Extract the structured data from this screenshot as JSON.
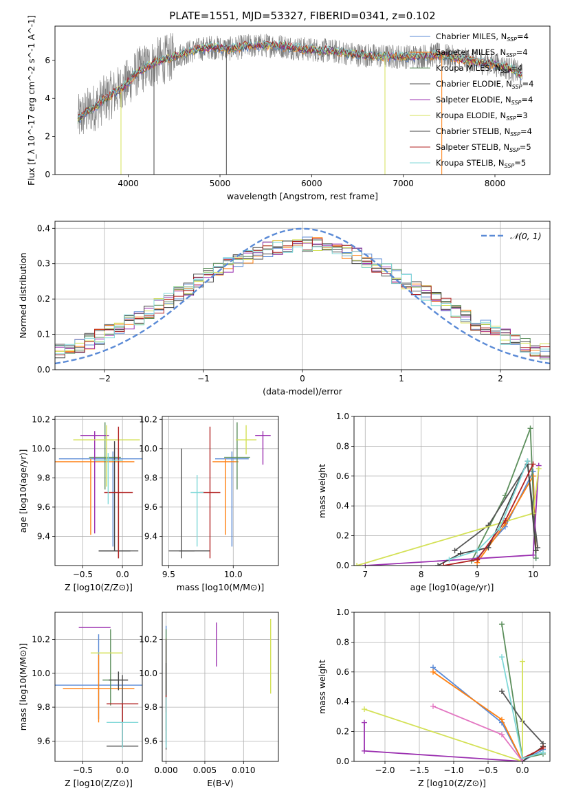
{
  "title": "PLATE=1551, MJD=53327, FIBERID=0341, z=0.102",
  "series": [
    {
      "name": "Chabrier MILES",
      "nssp": "4",
      "color": "#5a8ad6"
    },
    {
      "name": "Salpeter MILES",
      "nssp": "4",
      "color": "#ff7f0e"
    },
    {
      "name": "Kroupa MILES",
      "nssp": "4",
      "color": "#5c8f5c"
    },
    {
      "name": "Chabrier ELODIE",
      "nssp": "4",
      "color": "#555555"
    },
    {
      "name": "Salpeter ELODIE",
      "nssp": "4",
      "color": "#9b30b0"
    },
    {
      "name": "Kroupa ELODIE",
      "nssp": "3",
      "color": "#d4e157"
    },
    {
      "name": "Chabrier STELIB",
      "nssp": "4",
      "color": "#444444"
    },
    {
      "name": "Salpeter STELIB",
      "nssp": "5",
      "color": "#b22222"
    },
    {
      "name": "Kroupa STELIB",
      "nssp": "5",
      "color": "#7fd8d8"
    }
  ],
  "chart_data": [
    {
      "id": "spectrum",
      "type": "line",
      "xlabel": "wavelength [Angstrom, rest frame]",
      "ylabel": "Flux [f_λ 10^-17 erg cm^-2 s^-1 A^-1]",
      "xlim": [
        3200,
        8600
      ],
      "ylim": [
        0,
        7.8
      ],
      "xticks": [
        4000,
        5000,
        6000,
        7000,
        8000
      ],
      "yticks": [
        0,
        2,
        4,
        6
      ],
      "grid": false,
      "legend": "right",
      "data_color": "#808080",
      "continuum": {
        "x": [
          3450,
          3550,
          3650,
          3750,
          3850,
          3950,
          4100,
          4300,
          4500,
          4700,
          4900,
          5100,
          5300,
          5600,
          5900,
          6200,
          6500,
          6800,
          7100,
          7400,
          7700,
          8000,
          8200,
          8300
        ],
        "y": [
          2.9,
          3.3,
          3.6,
          4.0,
          4.3,
          4.6,
          5.4,
          5.9,
          6.2,
          6.5,
          6.7,
          6.6,
          6.75,
          6.8,
          6.6,
          6.5,
          6.3,
          6.2,
          6.2,
          6.3,
          6.0,
          5.8,
          5.5,
          5.2
        ]
      },
      "spikes_down": [
        {
          "x": 3920,
          "y": 0,
          "series": "Kroupa ELODIE"
        },
        {
          "x": 4280,
          "y": 0,
          "series": "Chabrier STELIB"
        },
        {
          "x": 5070,
          "y": 0,
          "series": "Chabrier ELODIE"
        },
        {
          "x": 6800,
          "y": 0,
          "series": "Kroupa ELODIE"
        },
        {
          "x": 7420,
          "y": 0,
          "series": "Salpeter MILES"
        }
      ]
    },
    {
      "id": "residual-histogram",
      "type": "line",
      "xlabel": "(data-model)/error",
      "ylabel": "Normed distribution",
      "xlim": [
        -2.5,
        2.5
      ],
      "ylim": [
        0,
        0.42
      ],
      "xticks": [
        -2,
        -1,
        0,
        1,
        2
      ],
      "yticks": [
        0,
        0.1,
        0.2,
        0.3,
        0.4
      ],
      "grid": true,
      "bin_width": 0.1,
      "gaussian_label": "𝒩(0, 1)",
      "gaussian_color": "#5a8ad6",
      "legend": "top-right"
    },
    {
      "id": "age-vs-z",
      "type": "scatter",
      "xlabel": "Z [log10(Z/Z⊙)]",
      "ylabel": "age [log10(age/yr)]",
      "xlim": [
        -0.85,
        0.25
      ],
      "ylim": [
        9.2,
        10.22
      ],
      "xticks": [
        -0.5,
        0.0
      ],
      "yticks": [
        9.4,
        9.6,
        9.8,
        10.0,
        10.2
      ],
      "grid": true,
      "points": [
        {
          "x": -0.12,
          "y": 9.93,
          "xerr": 0.68,
          "yerr": [
            0.6,
            0.05
          ],
          "series": "Chabrier MILES"
        },
        {
          "x": -0.4,
          "y": 9.91,
          "xerr": 0.55,
          "yerr": [
            0.5,
            0.02
          ],
          "series": "Salpeter MILES"
        },
        {
          "x": -0.22,
          "y": 9.94,
          "xerr": 0.2,
          "yerr": [
            0.22,
            0.24
          ],
          "series": "Kroupa MILES"
        },
        {
          "x": -0.05,
          "y": 9.3,
          "xerr": 0.25,
          "yerr": [
            0.05,
            0.7
          ],
          "series": "Chabrier ELODIE"
        },
        {
          "x": -0.35,
          "y": 10.09,
          "xerr": 0.18,
          "yerr": [
            0.67,
            0.03
          ],
          "series": "Salpeter ELODIE"
        },
        {
          "x": -0.2,
          "y": 10.06,
          "xerr": 0.42,
          "yerr": [
            0.32,
            0.1
          ],
          "series": "Kroupa ELODIE"
        },
        {
          "x": -0.1,
          "y": 9.3,
          "xerr": 0.2,
          "yerr": [
            0.0,
            0.75
          ],
          "series": "Chabrier STELIB"
        },
        {
          "x": -0.05,
          "y": 9.7,
          "xerr": 0.18,
          "yerr": [
            0.45,
            0.45
          ],
          "series": "Salpeter STELIB"
        },
        {
          "x": -0.18,
          "y": 9.92,
          "xerr": 0.18,
          "yerr": [
            0.3,
            0.05
          ],
          "series": "Kroupa STELIB"
        }
      ]
    },
    {
      "id": "age-vs-mass",
      "type": "scatter",
      "xlabel": "mass [log10(M/M⊙)]",
      "ylabel": "",
      "xlim": [
        9.45,
        10.35
      ],
      "ylim": [
        9.2,
        10.22
      ],
      "xticks": [
        9.5,
        10.0
      ],
      "yticks": [
        9.4,
        9.6,
        9.8,
        10.0,
        10.2
      ],
      "grid": true,
      "points": [
        {
          "x": 9.99,
          "y": 9.93,
          "xerr": 0.13,
          "yerr": [
            0.6,
            0.05
          ],
          "series": "Chabrier MILES"
        },
        {
          "x": 9.94,
          "y": 9.91,
          "xerr": 0.1,
          "yerr": [
            0.5,
            0.02
          ],
          "series": "Salpeter MILES"
        },
        {
          "x": 10.03,
          "y": 9.94,
          "xerr": 0.1,
          "yerr": [
            0.22,
            0.24
          ],
          "series": "Kroupa MILES"
        },
        {
          "x": 9.6,
          "y": 9.3,
          "xerr": 0.1,
          "yerr": [
            0.05,
            0.7
          ],
          "series": "Chabrier ELODIE"
        },
        {
          "x": 10.23,
          "y": 10.09,
          "xerr": 0.06,
          "yerr": [
            0.2,
            0.03
          ],
          "series": "Salpeter ELODIE"
        },
        {
          "x": 10.1,
          "y": 10.06,
          "xerr": 0.08,
          "yerr": [
            0.1,
            0.1
          ],
          "series": "Kroupa ELODIE"
        },
        {
          "x": 9.7,
          "y": 9.3,
          "xerr": 0.12,
          "yerr": [
            0.0,
            0.0
          ],
          "series": "Chabrier STELIB"
        },
        {
          "x": 9.82,
          "y": 9.7,
          "xerr": 0.08,
          "yerr": [
            0.45,
            0.45
          ],
          "series": "Salpeter STELIB"
        },
        {
          "x": 9.72,
          "y": 9.7,
          "xerr": 0.05,
          "yerr": [
            0.37,
            0.12
          ],
          "series": "Kroupa STELIB"
        }
      ]
    },
    {
      "id": "massweight-vs-age",
      "type": "line",
      "xlabel": "age [log10(age/yr)]",
      "ylabel": "mass weight",
      "xlim": [
        6.8,
        10.3
      ],
      "ylim": [
        0,
        1.0
      ],
      "xticks": [
        7,
        8,
        9,
        10
      ],
      "yticks": [
        0.0,
        0.2,
        0.4,
        0.6,
        0.8,
        1.0
      ],
      "grid": true,
      "lines": [
        {
          "series": "Chabrier MILES",
          "x": [
            9.0,
            9.5,
            10.0,
            10.05
          ],
          "y": [
            0.05,
            0.26,
            0.63,
            0.05
          ]
        },
        {
          "series": "Salpeter MILES",
          "x": [
            9.0,
            9.5,
            10.0,
            10.05
          ],
          "y": [
            0.02,
            0.28,
            0.6,
            0.1
          ]
        },
        {
          "series": "Kroupa MILES",
          "x": [
            8.9,
            9.5,
            9.95,
            10.05
          ],
          "y": [
            0.03,
            0.47,
            0.92,
            0.05
          ]
        },
        {
          "series": "Chabrier ELODIE",
          "x": [
            8.6,
            9.2,
            9.9,
            10.08
          ],
          "y": [
            0.1,
            0.27,
            0.68,
            0.12
          ]
        },
        {
          "series": "Salpeter ELODIE",
          "x": [
            7.0,
            10.0,
            10.1
          ],
          "y": [
            0.0,
            0.07,
            0.67
          ]
        },
        {
          "series": "Kroupa ELODIE",
          "x": [
            6.85,
            10.0,
            10.1
          ],
          "y": [
            0.0,
            0.35,
            0.65
          ]
        },
        {
          "series": "Chabrier STELIB",
          "x": [
            8.3,
            8.7,
            9.2,
            9.9,
            10.05
          ],
          "y": [
            0.0,
            0.08,
            0.12,
            0.7,
            0.1
          ]
        },
        {
          "series": "Salpeter STELIB",
          "x": [
            8.4,
            9.0,
            9.5,
            10.0
          ],
          "y": [
            0.0,
            0.04,
            0.3,
            0.68
          ]
        },
        {
          "series": "Kroupa STELIB",
          "x": [
            8.5,
            9.0,
            9.4,
            9.9
          ],
          "y": [
            0.04,
            0.1,
            0.25,
            0.7
          ]
        }
      ]
    },
    {
      "id": "mass-vs-z",
      "type": "scatter",
      "xlabel": "Z [log10(Z/Z⊙)]",
      "ylabel": "mass [log10(M/M⊙)]",
      "xlim": [
        -0.85,
        0.25
      ],
      "ylim": [
        9.48,
        10.36
      ],
      "xticks": [
        -0.5,
        0.0
      ],
      "yticks": [
        9.6,
        9.8,
        10.0,
        10.2
      ],
      "grid": true,
      "points": [
        {
          "x": -0.3,
          "y": 9.93,
          "xerr": 0.55,
          "yerr": [
            0.2,
            0.3
          ],
          "series": "Chabrier MILES"
        },
        {
          "x": -0.3,
          "y": 9.91,
          "xerr": 0.45,
          "yerr": [
            0.2,
            0.2
          ],
          "series": "Salpeter MILES"
        },
        {
          "x": -0.15,
          "y": 9.96,
          "xerr": 0.1,
          "yerr": [
            0.15,
            0.3
          ],
          "series": "Kroupa MILES"
        },
        {
          "x": 0.0,
          "y": 9.57,
          "xerr": 0.2,
          "yerr": [
            0.0,
            0.42
          ],
          "series": "Chabrier ELODIE"
        },
        {
          "x": -0.35,
          "y": 10.27,
          "xerr": 0.2,
          "yerr": [
            0.0,
            0.0
          ],
          "series": "Salpeter ELODIE"
        },
        {
          "x": -0.2,
          "y": 10.12,
          "xerr": 0.2,
          "yerr": [
            0.0,
            0.0
          ],
          "series": "Kroupa ELODIE"
        },
        {
          "x": -0.05,
          "y": 9.96,
          "xerr": 0.12,
          "yerr": [
            0.06,
            0.05
          ],
          "series": "Chabrier STELIB"
        },
        {
          "x": 0.0,
          "y": 9.82,
          "xerr": 0.2,
          "yerr": [
            0.25,
            0.0
          ],
          "series": "Salpeter STELIB"
        },
        {
          "x": 0.0,
          "y": 9.71,
          "xerr": 0.2,
          "yerr": [
            0.15,
            0.0
          ],
          "series": "Kroupa STELIB"
        }
      ]
    },
    {
      "id": "mass-vs-ebv",
      "type": "scatter",
      "xlabel": "E(B-V)",
      "ylabel": "",
      "xlim": [
        -0.0005,
        0.0145
      ],
      "ylim": [
        9.48,
        10.36
      ],
      "xticks": [
        0.0,
        0.005,
        0.01
      ],
      "yticks": [
        9.6,
        9.8,
        10.0,
        10.2
      ],
      "grid": true,
      "points": [
        {
          "x": 0.0,
          "y": 9.93,
          "xerr": 0,
          "yerr": [
            0.35,
            0.35
          ],
          "series": "Chabrier MILES"
        },
        {
          "x": 0.0,
          "y": 9.91,
          "xerr": 0,
          "yerr": [
            0.3,
            0.3
          ],
          "series": "Salpeter MILES"
        },
        {
          "x": 0.0,
          "y": 9.96,
          "xerr": 0,
          "yerr": [
            0.3,
            0.3
          ],
          "series": "Kroupa MILES"
        },
        {
          "x": 0.0,
          "y": 9.9,
          "xerr": 0,
          "yerr": [
            0.35,
            0.3
          ],
          "series": "Chabrier ELODIE"
        },
        {
          "x": 0.0065,
          "y": 10.17,
          "xerr": 0,
          "yerr": [
            0.13,
            0.13
          ],
          "series": "Salpeter ELODIE"
        },
        {
          "x": 0.0135,
          "y": 10.1,
          "xerr": 0,
          "yerr": [
            0.22,
            0.22
          ],
          "series": "Kroupa ELODIE"
        },
        {
          "x": 0.0,
          "y": 9.96,
          "xerr": 0,
          "yerr": [
            0.1,
            0.1
          ],
          "series": "Chabrier STELIB"
        },
        {
          "x": 0.0,
          "y": 9.82,
          "xerr": 0,
          "yerr": [
            0.05,
            0.05
          ],
          "series": "Salpeter STELIB"
        },
        {
          "x": 0.0,
          "y": 9.71,
          "xerr": 0,
          "yerr": [
            0.15,
            0.15
          ],
          "series": "Kroupa STELIB"
        }
      ]
    },
    {
      "id": "massweight-vs-z",
      "type": "line",
      "xlabel": "Z [log10(Z/Z⊙)]",
      "ylabel": "mass weight",
      "xlim": [
        -2.45,
        0.4
      ],
      "ylim": [
        0,
        1.0
      ],
      "xticks": [
        -2.0,
        -1.5,
        -1.0,
        -0.5,
        0.0
      ],
      "yticks": [
        0.0,
        0.2,
        0.4,
        0.6,
        0.8,
        1.0
      ],
      "grid": true,
      "lines": [
        {
          "series": "Chabrier MILES",
          "x": [
            -1.3,
            -0.3,
            0.0,
            0.3
          ],
          "y": [
            0.63,
            0.26,
            0.0,
            0.08
          ]
        },
        {
          "series": "Salpeter MILES",
          "x": [
            -1.3,
            -0.3,
            0.0,
            0.3
          ],
          "y": [
            0.6,
            0.28,
            0.0,
            0.1
          ]
        },
        {
          "series": "Kroupa MILES",
          "x": [
            -0.3,
            0.0,
            0.3
          ],
          "y": [
            0.92,
            0.02,
            0.05
          ]
        },
        {
          "series": "Chabrier ELODIE",
          "x": [
            -0.3,
            0.0,
            0.3
          ],
          "y": [
            0.47,
            0.27,
            0.12
          ]
        },
        {
          "series": "Salpeter ELODIE",
          "x": [
            -2.3,
            -2.3,
            0.0
          ],
          "y": [
            0.26,
            0.07,
            0.0
          ]
        },
        {
          "series": "Kroupa ELODIE",
          "x": [
            -2.3,
            0.0,
            0.0
          ],
          "y": [
            0.35,
            0.0,
            0.67
          ]
        },
        {
          "series": "Chabrier STELIB",
          "x": [
            0.0,
            0.3
          ],
          "y": [
            0.0,
            0.1
          ]
        },
        {
          "series": "Salpeter STELIB",
          "x": [
            0.0,
            0.3
          ],
          "y": [
            0.02,
            0.09
          ]
        },
        {
          "series": "Kroupa STELIB",
          "x": [
            -0.3,
            0.0,
            0.3
          ],
          "y": [
            0.7,
            0.02,
            0.06
          ]
        }
      ],
      "extra_lines": [
        {
          "series": "Salpeter MILES",
          "x": [
            -1.3,
            -0.3,
            0.0
          ],
          "y": [
            0.37,
            0.18,
            0.0
          ],
          "color": "#e377c2"
        }
      ]
    }
  ]
}
